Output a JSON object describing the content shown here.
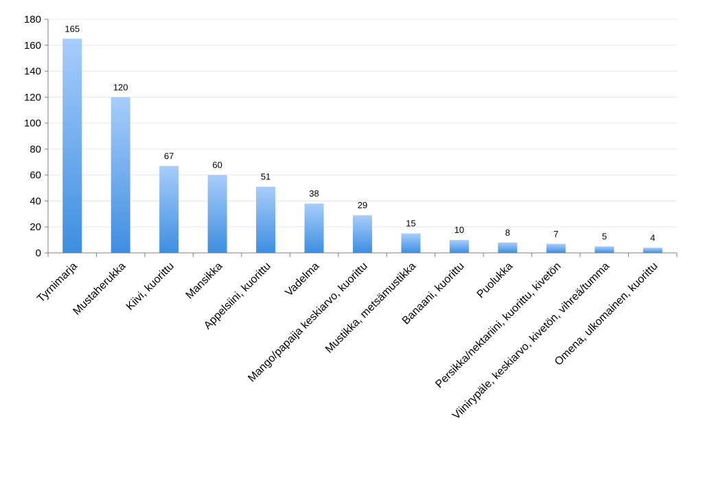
{
  "chart_data": {
    "type": "bar",
    "title": "",
    "xlabel": "",
    "ylabel": "",
    "ylim": [
      0,
      180
    ],
    "yticks": [
      0,
      20,
      40,
      60,
      80,
      100,
      120,
      140,
      160,
      180
    ],
    "grid": true,
    "legend": "none",
    "bar_color_top": "#a8cdfb",
    "bar_color_bottom": "#3d8ee0",
    "categories": [
      "Tyrnimarja",
      "Mustaherukka",
      "Kiivi, kuorittu",
      "Mansikka",
      "Appelsiini, kuorittu",
      "Vadelma",
      "Mango/papaija keskiarvo, kuorittu",
      "Mustikka, metsämustikka",
      "Banaani, kuorittu",
      "Puolukka",
      "Persikka/nektariini, kuorittu, kivetön",
      "Viinirypäle, keskiarvo, kivetön, vihreä/tumma",
      "Omena, ulkomainen, kuorittu"
    ],
    "values": [
      165,
      120,
      67,
      60,
      51,
      38,
      29,
      15,
      10,
      8,
      7,
      5,
      4
    ]
  }
}
